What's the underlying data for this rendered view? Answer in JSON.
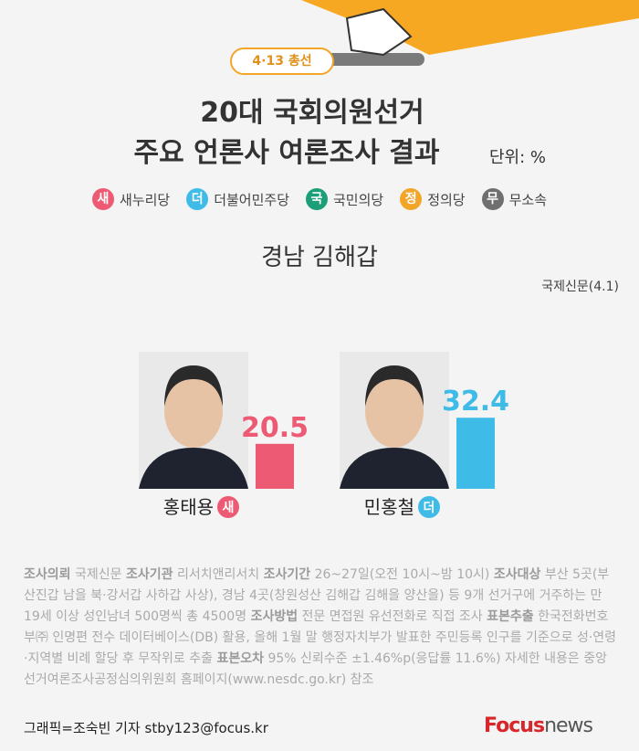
{
  "header": {
    "badge": "4·13 총선",
    "title_line1": "20대 국회의원선거",
    "title_line2": "주요 언론사 여론조사 결과",
    "unit": "단위: %"
  },
  "legend": [
    {
      "mark": "새",
      "name": "새누리당",
      "color": "#ec5b73"
    },
    {
      "mark": "더",
      "name": "더불어민주당",
      "color": "#3fbbe8"
    },
    {
      "mark": "국",
      "name": "국민의당",
      "color": "#1c9e78"
    },
    {
      "mark": "정",
      "name": "정의당",
      "color": "#f3a52a"
    },
    {
      "mark": "무",
      "name": "무소속",
      "color": "#6f6f6f"
    }
  ],
  "chart_data": {
    "type": "bar",
    "title": "경남 김해갑",
    "source": "국제신문(4.1)",
    "categories": [
      "홍태용",
      "민홍철"
    ],
    "parties": [
      "새",
      "더"
    ],
    "values": [
      20.5,
      32.4
    ],
    "colors": [
      "#ec5b73",
      "#3fbbe8"
    ]
  },
  "notes": [
    {
      "label": "조사의뢰",
      "text": "국제신문"
    },
    {
      "label": "조사기관",
      "text": "리서치앤리서치"
    },
    {
      "label": "조사기간",
      "text": "26~27일(오전 10시~밤 10시)"
    },
    {
      "label": "조사대상",
      "text": "부산 5곳(부산진갑 남을 북·강서갑 사하갑 사상), 경남 4곳(창원성산 김해갑 김해을 양산을) 등 9개 선거구에 거주하는 만 19세 이상 성인남녀 500명씩 총 4500명"
    },
    {
      "label": "조사방법",
      "text": "전문 면접원 유선전화로 직접 조사"
    },
    {
      "label": "표본추출",
      "text": "한국전화번호부㈜ 인명편 전수 데이터베이스(DB) 활용, 올해 1월 말 행정자치부가 발표한 주민등록 인구를 기준으로 성·연령·지역별 비례 할당 후 무작위로 추출"
    },
    {
      "label": "표본오차",
      "text": "95% 신뢰수준 ±1.46%p(응답률 11.6%) 자세한 내용은 중앙선거여론조사공정심의위원회 홈페이지(www.nesdc.go.kr) 참조"
    }
  ],
  "footer": {
    "credit": "그래픽=조숙빈 기자 stby123@focus.kr",
    "logo_a": "Focus",
    "logo_b": "news"
  }
}
